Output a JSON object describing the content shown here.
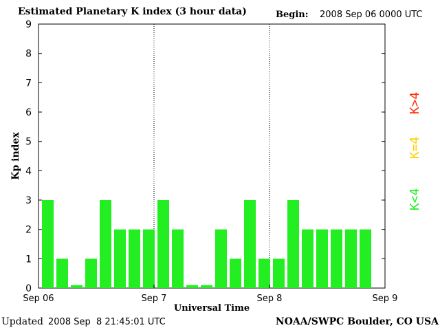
{
  "header": {
    "title": "Estimated Planetary K index (3 hour data)",
    "begin_label": "Begin:",
    "begin_value": "2008 Sep 06 0000 UTC"
  },
  "footer": {
    "updated_label": "Updated",
    "updated_value": "2008 Sep  8 21:45:01 UTC",
    "credit": "NOAA/SWPC Boulder, CO USA"
  },
  "legend": [
    {
      "label": "K>4",
      "color": "#ff2a00"
    },
    {
      "label": "K=4",
      "color": "#ffd000"
    },
    {
      "label": "K<4",
      "color": "#22ee22"
    }
  ],
  "chart_data": {
    "type": "bar",
    "title": "Estimated Planetary K index (3 hour data)",
    "xlabel": "Universal Time",
    "ylabel": "Kp index",
    "ylim": [
      0,
      9
    ],
    "yticks": [
      0,
      1,
      2,
      3,
      4,
      5,
      6,
      7,
      8,
      9
    ],
    "xticks": [
      "Sep 06",
      "Sep 7",
      "Sep 8",
      "Sep 9"
    ],
    "interval_hours": 3,
    "days": 3,
    "values": [
      3,
      1,
      0.1,
      1,
      3,
      2,
      2,
      2,
      3,
      2,
      0.1,
      0.1,
      2,
      1,
      3,
      1,
      1,
      3,
      2,
      2,
      2,
      2,
      2
    ],
    "bar_color": "#22ee22",
    "grid": false
  }
}
